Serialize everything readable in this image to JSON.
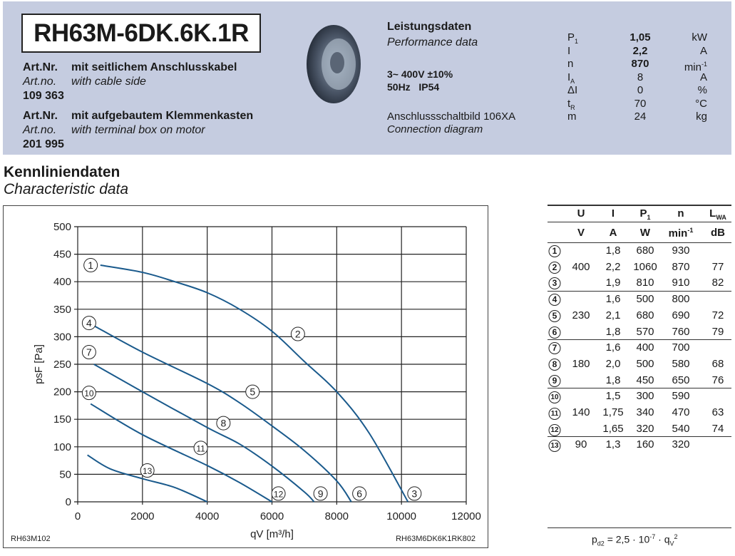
{
  "header": {
    "model": "RH63M-6DK.6K.1R",
    "art1": {
      "label_de": "Art.Nr.",
      "desc_de": "mit seitlichem Anschlusskabel",
      "label_en": "Art.no.",
      "desc_en": "with cable side",
      "number": "109 363"
    },
    "art2": {
      "label_de": "Art.Nr.",
      "desc_de": "mit aufgebautem Klemmenkasten",
      "label_en": "Art.no.",
      "desc_en": "with terminal box on motor",
      "number": "201 995"
    },
    "perf_title_de": "Leistungsdaten",
    "perf_title_en": "Performance data",
    "supply1": "3~ 400V ±10%",
    "supply2": "50Hz   IP54",
    "conn_de": "Anschlussschaltbild 106XA",
    "conn_en": "Connection diagram",
    "params": [
      {
        "sym": "P",
        "sub": "1",
        "val": "1,05",
        "unit": "kW",
        "bold": true
      },
      {
        "sym": "I",
        "sub": "",
        "val": "2,2",
        "unit": "A",
        "bold": true
      },
      {
        "sym": "n",
        "sub": "",
        "val": "870",
        "unit": "min",
        "sup": "-1",
        "bold": true
      },
      {
        "sym": "I",
        "sub": "A",
        "val": "8",
        "unit": "A"
      },
      {
        "sym": "ΔI",
        "sub": "",
        "val": "0",
        "unit": "%"
      },
      {
        "sym": "t",
        "sub": "R",
        "val": "70",
        "unit": "°C"
      },
      {
        "sym": "m",
        "sub": "",
        "val": "24",
        "unit": "kg"
      }
    ]
  },
  "section": {
    "title_de": "Kennliniendaten",
    "title_en": "Characteristic data"
  },
  "chart_data": {
    "type": "line",
    "xlabel": "qV [m³/h]",
    "ylabel": "psF [Pa]",
    "xlim": [
      0,
      12000
    ],
    "ylim": [
      0,
      500
    ],
    "xticks": [
      0,
      2000,
      4000,
      6000,
      8000,
      10000,
      12000
    ],
    "yticks": [
      0,
      50,
      100,
      150,
      200,
      250,
      300,
      350,
      400,
      450,
      500
    ],
    "grid": true,
    "line_color": "#1a5a8c",
    "series": [
      {
        "points": [
          [
            700,
            430
          ],
          [
            2000,
            417
          ],
          [
            3000,
            400
          ],
          [
            4000,
            380
          ],
          [
            5000,
            350
          ],
          [
            6000,
            310
          ],
          [
            7000,
            255
          ],
          [
            8000,
            200
          ],
          [
            9000,
            125
          ],
          [
            10200,
            0
          ]
        ]
      },
      {
        "points": [
          [
            500,
            320
          ],
          [
            2000,
            272
          ],
          [
            4000,
            215
          ],
          [
            5000,
            180
          ],
          [
            6000,
            138
          ],
          [
            7000,
            93
          ],
          [
            8000,
            38
          ],
          [
            8450,
            0
          ]
        ]
      },
      {
        "points": [
          [
            500,
            250
          ],
          [
            2000,
            200
          ],
          [
            4000,
            135
          ],
          [
            5000,
            105
          ],
          [
            6000,
            65
          ],
          [
            7000,
            18
          ],
          [
            7300,
            0
          ]
        ]
      },
      {
        "points": [
          [
            400,
            178
          ],
          [
            2000,
            122
          ],
          [
            4000,
            66
          ],
          [
            5000,
            35
          ],
          [
            6000,
            0
          ]
        ]
      },
      {
        "points": [
          [
            300,
            85
          ],
          [
            1000,
            60
          ],
          [
            2000,
            42
          ],
          [
            3000,
            26
          ],
          [
            4000,
            0
          ]
        ]
      }
    ],
    "markers": [
      {
        "label": "1",
        "x": 400,
        "y": 430
      },
      {
        "label": "2",
        "x": 6800,
        "y": 305
      },
      {
        "label": "3",
        "x": 10400,
        "y": 15
      },
      {
        "label": "4",
        "x": 350,
        "y": 325
      },
      {
        "label": "5",
        "x": 5400,
        "y": 200
      },
      {
        "label": "6",
        "x": 8700,
        "y": 15
      },
      {
        "label": "7",
        "x": 350,
        "y": 272
      },
      {
        "label": "8",
        "x": 4500,
        "y": 143
      },
      {
        "label": "9",
        "x": 7500,
        "y": 15
      },
      {
        "label": "10",
        "x": 350,
        "y": 198
      },
      {
        "label": "11",
        "x": 3800,
        "y": 98
      },
      {
        "label": "12",
        "x": 6200,
        "y": 15
      },
      {
        "label": "13",
        "x": 2150,
        "y": 57
      }
    ],
    "footer_left": "RH63M102",
    "footer_right": "RH63M6DK6K1RK802"
  },
  "table": {
    "headers": [
      "U",
      "I",
      "P1",
      "n",
      "LWA"
    ],
    "units": [
      "V",
      "A",
      "W",
      "min-1",
      "dB"
    ],
    "rows": [
      [
        "1",
        "",
        "1,8",
        "680",
        "930",
        ""
      ],
      [
        "2",
        "400",
        "2,2",
        "1060",
        "870",
        "77"
      ],
      [
        "3",
        "",
        "1,9",
        "810",
        "910",
        "82"
      ],
      [
        "4",
        "",
        "1,6",
        "500",
        "800",
        ""
      ],
      [
        "5",
        "230",
        "2,1",
        "680",
        "690",
        "72"
      ],
      [
        "6",
        "",
        "1,8",
        "570",
        "760",
        "79"
      ],
      [
        "7",
        "",
        "1,6",
        "400",
        "700",
        ""
      ],
      [
        "8",
        "180",
        "2,0",
        "500",
        "580",
        "68"
      ],
      [
        "9",
        "",
        "1,8",
        "450",
        "650",
        "76"
      ],
      [
        "10",
        "",
        "1,5",
        "300",
        "590",
        ""
      ],
      [
        "11",
        "140",
        "1,75",
        "340",
        "470",
        "63"
      ],
      [
        "12",
        "",
        "1,65",
        "320",
        "540",
        "74"
      ],
      [
        "13",
        "90",
        "1,3",
        "160",
        "320",
        ""
      ]
    ],
    "formula": "pd2 = 2,5 · 10-7 · qV2"
  }
}
